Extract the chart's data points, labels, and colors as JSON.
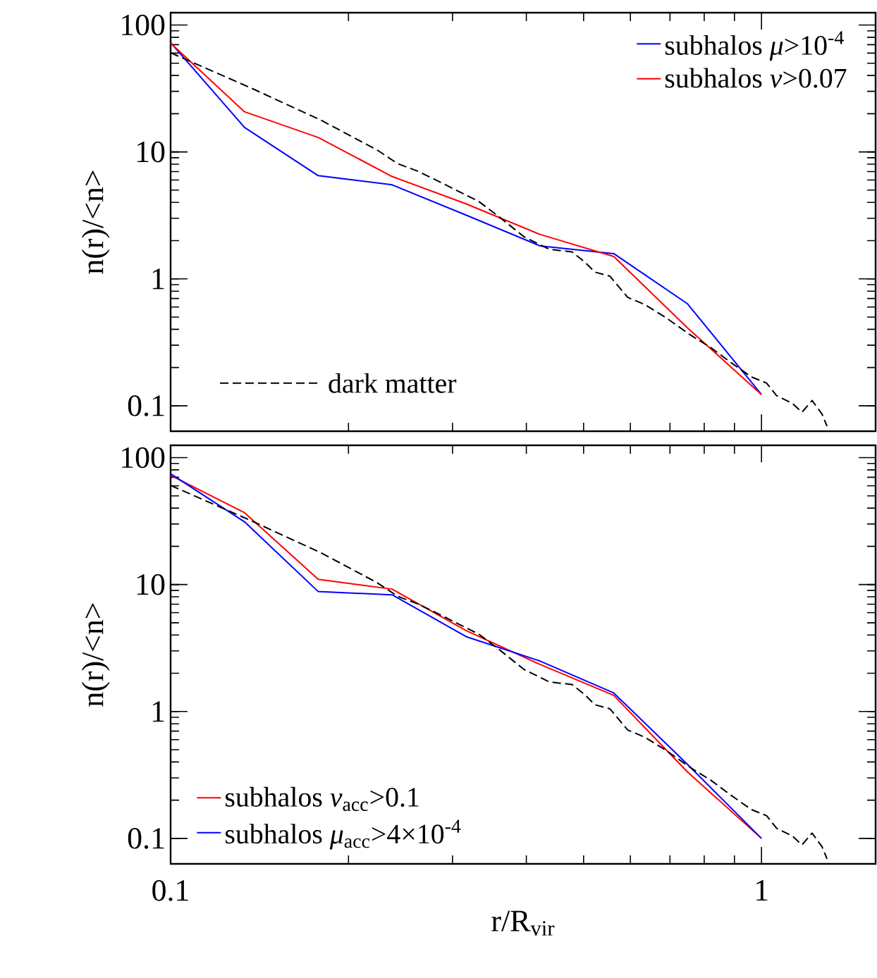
{
  "chart_data": [
    {
      "type": "line",
      "ylabel": "n(r)/<n>",
      "log": "xy",
      "xlim": [
        0.1,
        1.56
      ],
      "ylim": [
        0.063,
        125
      ],
      "xticks": [
        0.1,
        1
      ],
      "yticks": [
        0.1,
        1,
        10,
        100
      ],
      "tick_labels": "y",
      "legend": "top right",
      "marker": "none",
      "x": [
        0.1,
        0.1334,
        0.1778,
        0.2371,
        0.3162,
        0.4217,
        0.5623,
        0.7499,
        1.0
      ],
      "series": [
        {
          "name": "subhalos *μ*>10$^{-4}$",
          "color": "#0000ff",
          "line_style": "solid",
          "values": [
            72.6,
            15.6,
            6.5,
            5.5,
            3.18,
            1.82,
            1.58,
            0.635,
            0.1225
          ]
        },
        {
          "name": "subhalos *ν*>0.07",
          "color": "#ff0000",
          "line_style": "solid",
          "values": [
            72,
            20.7,
            13.0,
            6.4,
            3.9,
            2.24,
            1.5,
            0.41,
            0.1225
          ]
        },
        {
          "name": "dark matter",
          "color": "#000000",
          "line_style": "dashed",
          "x": [
            0.1,
            0.137,
            0.1805,
            0.224,
            0.2424,
            0.2623,
            0.2838,
            0.3323,
            0.3594,
            0.3966,
            0.4375,
            0.478,
            0.502,
            0.5224,
            0.554,
            0.5935,
            0.636,
            0.688,
            0.759,
            0.821,
            0.889,
            0.961,
            1.02,
            1.061,
            1.126,
            1.171,
            1.218,
            1.266,
            1.291
          ],
          "values": [
            60.4,
            31.8,
            17.6,
            10.3,
            8.07,
            7.04,
            5.88,
            4.07,
            3.09,
            2.14,
            1.71,
            1.63,
            1.36,
            1.13,
            1.05,
            0.716,
            0.624,
            0.497,
            0.36,
            0.287,
            0.218,
            0.169,
            0.151,
            0.12,
            0.105,
            0.089,
            0.11,
            0.086,
            0.069
          ]
        }
      ]
    },
    {
      "type": "line",
      "xlabel": "r/R$_{vir}$",
      "ylabel": "n(r)/<n>",
      "log": "xy",
      "xlim": [
        0.1,
        1.56
      ],
      "ylim": [
        0.063,
        125
      ],
      "xticks": [
        0.1,
        1
      ],
      "yticks": [
        0.1,
        1,
        10,
        100
      ],
      "legend": "bottom left",
      "marker": "none",
      "x": [
        0.1,
        0.1334,
        0.1778,
        0.2371,
        0.3162,
        0.4217,
        0.5623,
        0.7499,
        1.0
      ],
      "series": [
        {
          "name": "subhalos *ν*$_{acc}$>0.1",
          "color": "#ff0000",
          "line_style": "solid",
          "values": [
            72.6,
            36.8,
            11.0,
            9.2,
            4.34,
            2.35,
            1.34,
            0.333,
            0.1
          ]
        },
        {
          "name": "subhalos *μ*$_{acc}$>4×10$^{-4}$",
          "color": "#0000ff",
          "line_style": "solid",
          "values": [
            74.6,
            31.2,
            8.8,
            8.3,
            3.89,
            2.5,
            1.4,
            0.382,
            0.1
          ]
        },
        {
          "color": "#000000",
          "line_style": "dashed",
          "x": [
            0.1,
            0.137,
            0.1805,
            0.224,
            0.2424,
            0.2623,
            0.2838,
            0.3323,
            0.3594,
            0.3966,
            0.4375,
            0.478,
            0.502,
            0.5224,
            0.554,
            0.5935,
            0.636,
            0.688,
            0.759,
            0.821,
            0.889,
            0.961,
            1.02,
            1.061,
            1.126,
            1.171,
            1.218,
            1.266,
            1.291
          ],
          "values": [
            60.4,
            31.8,
            17.6,
            10.3,
            8.07,
            7.04,
            5.88,
            4.07,
            3.09,
            2.14,
            1.71,
            1.63,
            1.36,
            1.13,
            1.05,
            0.716,
            0.624,
            0.497,
            0.36,
            0.287,
            0.218,
            0.169,
            0.151,
            0.12,
            0.105,
            0.089,
            0.11,
            0.086,
            0.069
          ]
        }
      ]
    }
  ]
}
